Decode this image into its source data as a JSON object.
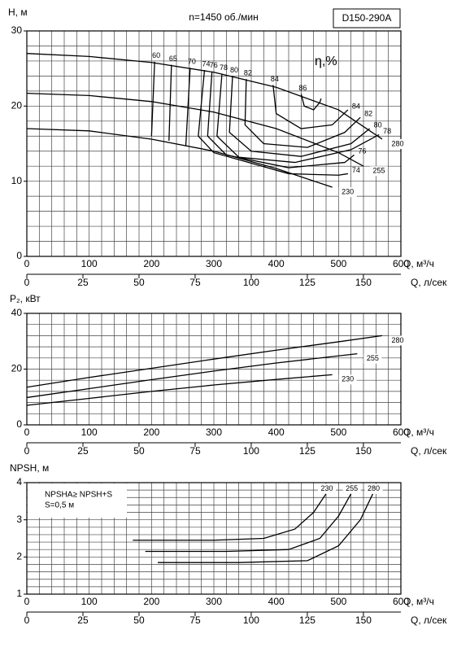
{
  "chart_data": [
    {
      "type": "line",
      "title": "n=1450 об./мин",
      "model": "D150-290A",
      "y_label": "H, м",
      "x_label": "Q, м³/ч",
      "x2_label": "Q, л/сек",
      "eta_label": "η,%",
      "xlim": [
        0,
        600
      ],
      "xticks": [
        0,
        100,
        200,
        300,
        400,
        500,
        600
      ],
      "x2lim": [
        0,
        166.7
      ],
      "x2ticks": [
        0,
        25,
        50,
        75,
        100,
        125,
        150
      ],
      "ylim": [
        0,
        30
      ],
      "yticks": [
        0,
        10,
        20,
        30
      ],
      "xgrid": [
        0,
        20,
        40,
        60,
        80,
        100,
        120,
        140,
        160,
        180,
        200,
        220,
        240,
        260,
        280,
        300,
        320,
        340,
        360,
        380,
        400,
        420,
        440,
        460,
        480,
        500,
        520,
        540,
        560,
        580,
        600
      ],
      "ygrid": [
        0,
        2,
        4,
        6,
        8,
        10,
        12,
        14,
        16,
        18,
        20,
        22,
        24,
        26,
        28,
        30
      ],
      "series": [
        {
          "name": "280",
          "color": "#000000",
          "x": [
            0,
            100,
            200,
            300,
            400,
            500,
            570
          ],
          "values": [
            27,
            26.6,
            25.8,
            24.5,
            22.5,
            19.5,
            15.6
          ]
        },
        {
          "name": "255",
          "color": "#000000",
          "x": [
            0,
            100,
            200,
            300,
            400,
            500,
            540
          ],
          "values": [
            21.7,
            21.4,
            20.6,
            19.2,
            17,
            13.8,
            12
          ]
        },
        {
          "name": "230",
          "color": "#000000",
          "x": [
            0,
            100,
            200,
            300,
            400,
            490
          ],
          "values": [
            17,
            16.7,
            15.6,
            14,
            11.7,
            9.2
          ]
        }
      ],
      "efficiency": [
        {
          "eta": 60,
          "q": [
            205,
            200
          ],
          "h": [
            25.9,
            16
          ]
        },
        {
          "eta": 65,
          "q": [
            232,
            228
          ],
          "h": [
            25.5,
            15.4
          ]
        },
        {
          "eta": 70,
          "q": [
            262,
            255
          ],
          "h": [
            25.1,
            14.7
          ]
        },
        {
          "eta": 74,
          "q": [
            285,
            275,
            300,
            420,
            500,
            515
          ],
          "h": [
            24.8,
            16,
            13.8,
            11,
            10.8,
            11
          ]
        },
        {
          "eta": 76,
          "q": [
            297,
            290,
            320,
            420,
            510,
            525
          ],
          "h": [
            24.6,
            16,
            13.5,
            11.8,
            12.5,
            13.5
          ]
        },
        {
          "eta": 78,
          "q": [
            313,
            305,
            340,
            430,
            520,
            565
          ],
          "h": [
            24.3,
            16,
            13.2,
            12.5,
            14.2,
            16.2
          ]
        },
        {
          "eta": 80,
          "q": [
            330,
            325,
            360,
            440,
            520,
            550
          ],
          "h": [
            24,
            16.5,
            14,
            13.3,
            15,
            17
          ]
        },
        {
          "eta": 82,
          "q": [
            352,
            350,
            380,
            450,
            510,
            535
          ],
          "h": [
            23.6,
            17.5,
            15,
            14.5,
            16.5,
            18.5
          ]
        },
        {
          "eta": 84,
          "q": [
            395,
            400,
            440,
            490,
            515
          ],
          "h": [
            22.8,
            19,
            17,
            17.5,
            19.5
          ]
        },
        {
          "eta": 86,
          "q": [
            440,
            445,
            460,
            470,
            472
          ],
          "h": [
            21.6,
            20,
            19.5,
            20.5,
            21
          ]
        }
      ]
    },
    {
      "type": "line",
      "y_label": "P₂, кВт",
      "x_label": "Q, м³/ч",
      "x2_label": "Q, л/сек",
      "xlim": [
        0,
        600
      ],
      "xticks": [
        0,
        100,
        200,
        300,
        400,
        500,
        600
      ],
      "x2lim": [
        0,
        166.7
      ],
      "x2ticks": [
        0,
        25,
        50,
        75,
        100,
        125,
        150
      ],
      "ylim": [
        0,
        40
      ],
      "yticks": [
        0,
        20,
        40
      ],
      "xgrid": [
        0,
        20,
        40,
        60,
        80,
        100,
        120,
        140,
        160,
        180,
        200,
        220,
        240,
        260,
        280,
        300,
        320,
        340,
        360,
        380,
        400,
        420,
        440,
        460,
        480,
        500,
        520,
        540,
        560,
        580,
        600
      ],
      "ygrid": [
        0,
        4,
        8,
        12,
        16,
        20,
        24,
        28,
        32,
        36,
        40
      ],
      "series": [
        {
          "name": "280",
          "color": "#000000",
          "x": [
            0,
            100,
            200,
            300,
            400,
            500,
            570
          ],
          "values": [
            13.5,
            17,
            20.3,
            23.6,
            26.8,
            29.8,
            32
          ]
        },
        {
          "name": "255",
          "color": "#000000",
          "x": [
            0,
            100,
            200,
            300,
            400,
            530
          ],
          "values": [
            9.8,
            13,
            16.2,
            19.3,
            22.2,
            25.5
          ]
        },
        {
          "name": "230",
          "color": "#000000",
          "x": [
            0,
            100,
            200,
            300,
            400,
            490
          ],
          "values": [
            7,
            9.5,
            12,
            14.3,
            16.3,
            18
          ]
        }
      ]
    },
    {
      "type": "line",
      "y_label": "NPSH, м",
      "x_label": "Q, м³/ч",
      "x2_label": "Q, л/сек",
      "note": [
        "NPSHA≥ NPSH+S",
        "S=0,5 м"
      ],
      "xlim": [
        0,
        600
      ],
      "xticks": [
        0,
        100,
        200,
        300,
        400,
        500,
        600
      ],
      "x2lim": [
        0,
        166.7
      ],
      "x2ticks": [
        0,
        25,
        50,
        75,
        100,
        125,
        150
      ],
      "ylim": [
        1,
        4
      ],
      "yticks": [
        1,
        2,
        3,
        4
      ],
      "xgrid": [
        0,
        20,
        40,
        60,
        80,
        100,
        120,
        140,
        160,
        180,
        200,
        220,
        240,
        260,
        280,
        300,
        320,
        340,
        360,
        380,
        400,
        420,
        440,
        460,
        480,
        500,
        520,
        540,
        560,
        580,
        600
      ],
      "ygrid": [
        1,
        1.2,
        1.4,
        1.6,
        1.8,
        2,
        2.2,
        2.4,
        2.6,
        2.8,
        3,
        3.2,
        3.4,
        3.6,
        3.8,
        4
      ],
      "series": [
        {
          "name": "230",
          "color": "#000000",
          "x": [
            170,
            300,
            380,
            430,
            460,
            480
          ],
          "values": [
            2.45,
            2.45,
            2.5,
            2.75,
            3.2,
            3.7
          ]
        },
        {
          "name": "255",
          "color": "#000000",
          "x": [
            190,
            320,
            420,
            470,
            500,
            520
          ],
          "values": [
            2.15,
            2.15,
            2.2,
            2.5,
            3.1,
            3.7
          ]
        },
        {
          "name": "280",
          "color": "#000000",
          "x": [
            210,
            340,
            450,
            500,
            535,
            555
          ],
          "values": [
            1.85,
            1.85,
            1.9,
            2.3,
            3.0,
            3.7
          ]
        }
      ]
    }
  ]
}
